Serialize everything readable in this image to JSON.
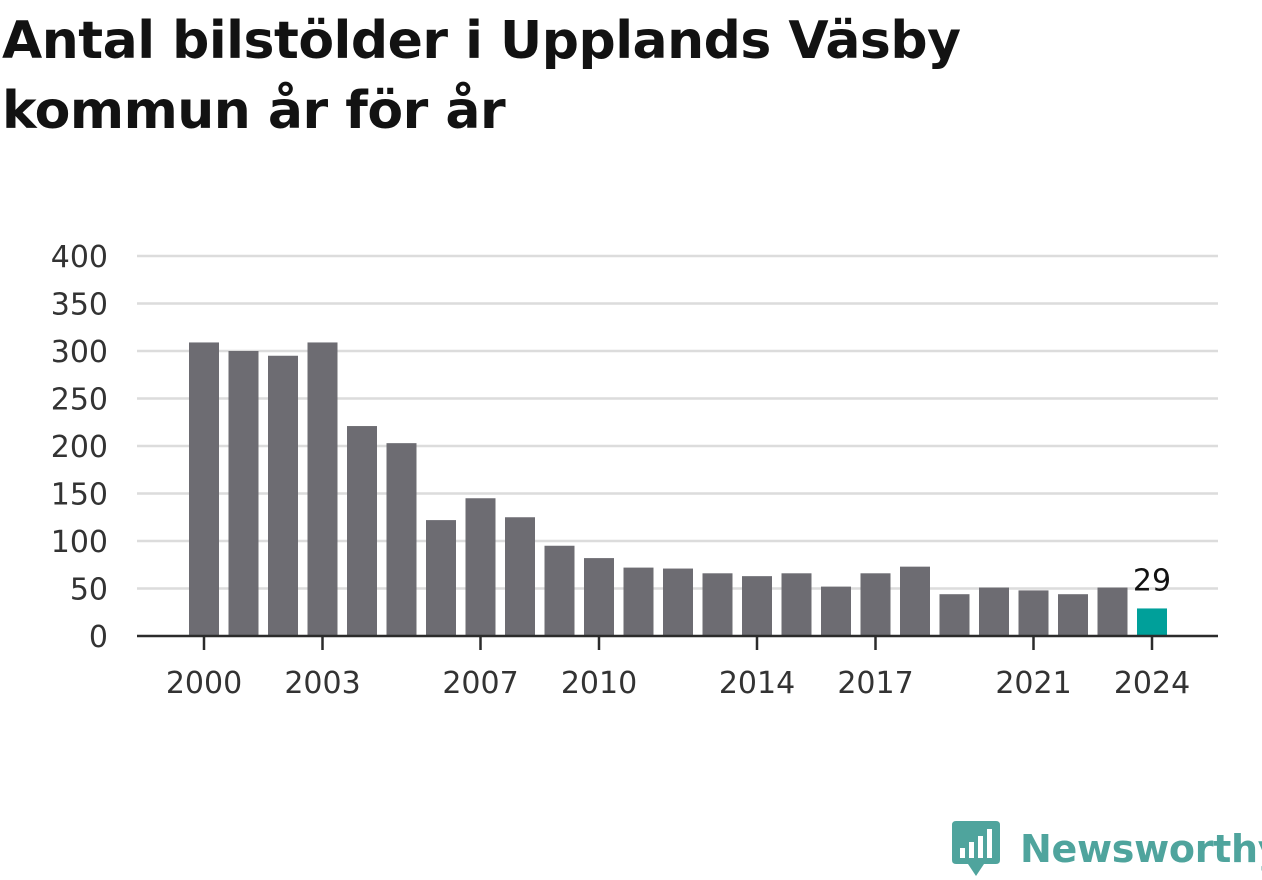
{
  "chart_data": {
    "type": "bar",
    "title": "Antal bilstölder i Upplands Väsby kommun år för år",
    "categories": [
      "2000",
      "2001",
      "2002",
      "2003",
      "2004",
      "2005",
      "2006",
      "2007",
      "2008",
      "2009",
      "2010",
      "2011",
      "2012",
      "2013",
      "2014",
      "2015",
      "2016",
      "2017",
      "2018",
      "2019",
      "2020",
      "2021",
      "2022",
      "2023",
      "2024"
    ],
    "values": [
      309,
      300,
      295,
      309,
      221,
      203,
      122,
      145,
      125,
      95,
      82,
      72,
      71,
      66,
      63,
      66,
      52,
      66,
      73,
      44,
      51,
      48,
      44,
      51,
      29
    ],
    "xtick_labels": [
      "2000",
      "2003",
      "2007",
      "2010",
      "2014",
      "2017",
      "2021",
      "2024"
    ],
    "ytick_labels": [
      "0",
      "50",
      "100",
      "150",
      "200",
      "250",
      "300",
      "350",
      "400"
    ],
    "ylim": [
      0,
      400
    ],
    "xlabel": "",
    "ylabel": "",
    "highlight_label": "29",
    "bar_color": "#6d6c72",
    "highlight_color": "#00a09a",
    "grid": true
  },
  "branding": {
    "name": "Newsworthy",
    "icon": "newsworthy-logo-icon",
    "color": "#4fa49d"
  }
}
